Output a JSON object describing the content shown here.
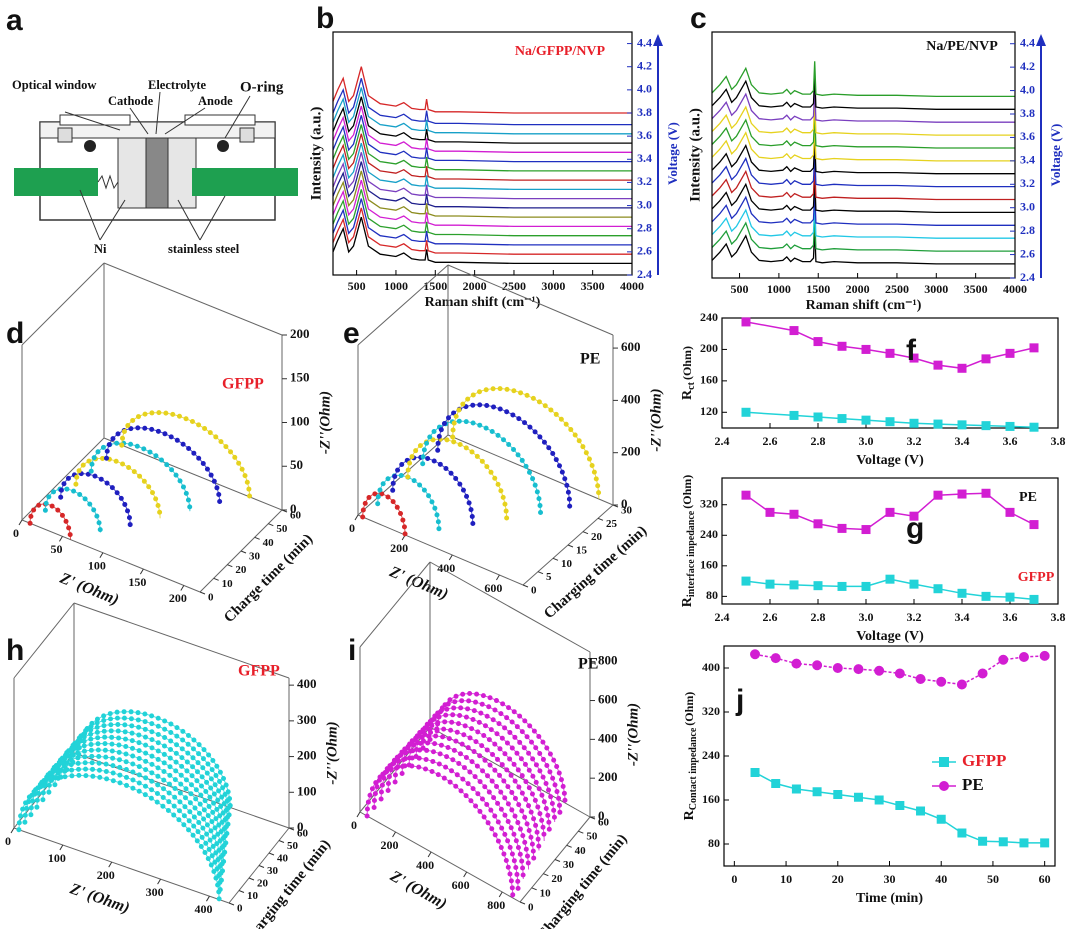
{
  "diagram": {
    "panel_label": "a",
    "labels": [
      "Optical window",
      "Cathode",
      "Electrolyte",
      "Anode",
      "O-ring",
      "Ni",
      "stainless steel"
    ]
  },
  "chart_data": [
    {
      "type": "spectra",
      "panel_label": "b",
      "title": "Na/GFPP/NVP",
      "title_color": "#e8202a",
      "xlabel": "Raman shift (cm⁻¹)",
      "ylabel": "Intensity (a.u.)",
      "y2label": "Voltage (V)",
      "xlim": [
        200,
        4000
      ],
      "xticks": [
        500,
        1000,
        1500,
        2000,
        2500,
        3000,
        3500,
        4000
      ],
      "y2lim": [
        2.4,
        4.5
      ],
      "y2ticks": [
        2.4,
        2.6,
        2.8,
        {
          "value": 3,
          "label": "3.0"
        },
        3.2,
        3.4,
        3.6,
        3.8,
        {
          "value": 4,
          "label": "4.0"
        },
        4.2,
        4.4
      ],
      "x": [
        200,
        260,
        330,
        400,
        460,
        560,
        650,
        800,
        1000,
        1100,
        1200,
        1300,
        1370,
        1390,
        1410,
        1500,
        1800,
        2500,
        3000,
        4000
      ],
      "profile": [
        0.1,
        0.2,
        0.3,
        0.1,
        0.15,
        0.4,
        0.15,
        0.08,
        0.06,
        0.09,
        0.04,
        0.03,
        0.03,
        0.12,
        0.03,
        0.01,
        0.01,
        0,
        0,
        0
      ],
      "curve_voltages": [
        2.5,
        2.58,
        2.66,
        2.74,
        2.82,
        2.9,
        2.98,
        3.06,
        3.14,
        3.22,
        3.3,
        3.38,
        3.46,
        3.54,
        3.62,
        3.7,
        3.8
      ],
      "curve_colors": [
        "#000000",
        "#d62728",
        "#1f2fbf",
        "#2ca02c",
        "#d21ed2",
        "#8c8c1e",
        "#1f1f8c",
        "#7a3fbf",
        "#17a0c8",
        "#c02020",
        "#2ca02c",
        "#1f2fbf",
        "#d21ed2",
        "#000000",
        "#17a0c8",
        "#1f2fbf",
        "#d62728"
      ]
    },
    {
      "type": "spectra",
      "panel_label": "c",
      "title": "Na/PE/NVP",
      "title_color": "#111111",
      "xlabel": "Raman shift (cm⁻¹)",
      "ylabel": "Intensity (a.u.)",
      "y2label": "Voltage (V)",
      "xlim": [
        150,
        4000
      ],
      "xticks": [
        500,
        1000,
        1500,
        2000,
        2500,
        3000,
        3500,
        4000
      ],
      "y2lim": [
        2.4,
        4.5
      ],
      "y2ticks": [
        2.4,
        2.6,
        2.8,
        {
          "value": 3,
          "label": "3.0"
        },
        3.2,
        3.4,
        3.6,
        3.8,
        {
          "value": 4,
          "label": "4.0"
        },
        4.2,
        4.4
      ],
      "x": [
        150,
        250,
        330,
        400,
        460,
        580,
        650,
        750,
        900,
        1050,
        1100,
        1150,
        1200,
        1300,
        1400,
        1440,
        1455,
        1470,
        1550,
        1700,
        2000,
        2500,
        3000,
        4000
      ],
      "profile": [
        0.03,
        0.1,
        0.17,
        0.06,
        0.1,
        0.24,
        0.1,
        0.03,
        0.02,
        0.03,
        0.06,
        0.02,
        0.05,
        0.02,
        0.02,
        0.05,
        0.3,
        0.02,
        0.01,
        0.02,
        0.01,
        0.01,
        0,
        0
      ],
      "curve_voltages": [
        2.52,
        2.63,
        2.74,
        2.85,
        2.96,
        3.07,
        3.18,
        3.29,
        3.4,
        3.51,
        3.62,
        3.73,
        3.84,
        3.95
      ],
      "curve_colors": [
        "#000000",
        "#1f9e3a",
        "#22c8e6",
        "#1f2fbf",
        "#000000",
        "#c02020",
        "#1f2fbf",
        "#000000",
        "#e6d21e",
        "#2a9e2a",
        "#e6d21e",
        "#7a3fbf",
        "#000000",
        "#2a9e2a"
      ]
    },
    {
      "type": "nyquist3d",
      "panel_label": "d",
      "label": "GFPP",
      "label_color": "#e8202a",
      "xlabel": "Z' (Ohm)",
      "tlabel": "Charge time (min)",
      "zlabel": "-Z''(Ohm)",
      "xlim": [
        0,
        220
      ],
      "xticks": [
        0,
        50,
        100,
        150,
        200
      ],
      "tlim": [
        0,
        60
      ],
      "tticks": [
        0,
        10,
        20,
        30,
        40,
        50,
        60
      ],
      "zlim": [
        0,
        200
      ],
      "zticks": [
        0,
        50,
        100,
        150,
        200
      ],
      "arc_times": [
        0,
        10,
        20,
        30,
        40,
        50,
        60
      ],
      "arc_starts": [
        10,
        12,
        14,
        16,
        18,
        20,
        22
      ],
      "arc_ends": [
        60,
        80,
        100,
        120,
        140,
        160,
        180
      ],
      "arc_heights": [
        30,
        35,
        40,
        45,
        50,
        55,
        60
      ],
      "arc_colors": [
        "#d62728",
        "#17becf",
        "#1f1fbf",
        "#e6d21e",
        "#17becf",
        "#1f1fbf",
        "#e6d21e"
      ]
    },
    {
      "type": "nyquist3d",
      "panel_label": "e",
      "label": "PE",
      "label_color": "#111111",
      "xlabel": "Z' (Ohm)",
      "tlabel": "Charging time (min)",
      "zlabel": "-Z''(Ohm)",
      "xlim": [
        0,
        700
      ],
      "xticks": [
        0,
        200,
        400,
        600
      ],
      "tlim": [
        0,
        30
      ],
      "tticks": [
        0,
        5,
        10,
        15,
        20,
        25,
        30
      ],
      "zlim": [
        0,
        650
      ],
      "zticks": [
        0,
        200,
        400,
        600
      ],
      "arc_times": [
        0,
        5,
        10,
        15,
        20,
        25,
        30
      ],
      "arc_starts": [
        20,
        20,
        20,
        20,
        20,
        20,
        20
      ],
      "arc_ends": [
        200,
        280,
        360,
        440,
        520,
        580,
        640
      ],
      "arc_heights": [
        120,
        150,
        180,
        210,
        240,
        260,
        280
      ],
      "arc_colors": [
        "#d62728",
        "#17becf",
        "#1f1fbf",
        "#e6d21e",
        "#17becf",
        "#1f1fbf",
        "#e6d21e"
      ]
    },
    {
      "type": "line",
      "panel_label": "f",
      "ylabel": "R",
      "ylabel_sub": "ct",
      "ylabel_unit": "(Ohm)",
      "xlabel": "Voltage (V)",
      "xlim": [
        2.4,
        3.8
      ],
      "xticks": [
        2.4,
        2.6,
        2.8,
        {
          "value": 3,
          "label": "3.0"
        },
        3.2,
        3.4,
        3.6,
        3.8
      ],
      "ylim": [
        100,
        240
      ],
      "yticks": [
        120,
        160,
        200,
        240
      ],
      "x": [
        2.5,
        2.7,
        2.8,
        2.9,
        3.0,
        3.1,
        3.2,
        3.3,
        3.4,
        3.5,
        3.6,
        3.7
      ],
      "series": [
        {
          "color": "#d21ed2",
          "marker": "square",
          "values": [
            235,
            224,
            210,
            204,
            200,
            195,
            189,
            180,
            176,
            188,
            195,
            202
          ]
        },
        {
          "color": "#22d3d8",
          "marker": "square",
          "values": [
            120,
            116,
            114,
            112,
            110,
            108,
            106,
            105,
            104,
            103,
            102,
            101
          ]
        }
      ]
    },
    {
      "type": "line",
      "panel_label": "g",
      "ylabel": "R",
      "ylabel_sub": "interface impedance",
      "ylabel_unit": "(Ohm)",
      "xlabel": "Voltage (V)",
      "xlim": [
        2.4,
        3.8
      ],
      "xticks": [
        2.4,
        2.6,
        2.8,
        {
          "value": 3,
          "label": "3.0"
        },
        3.2,
        3.4,
        3.6,
        3.8
      ],
      "ylim": [
        60,
        390
      ],
      "yticks": [
        80,
        160,
        240,
        320
      ],
      "x": [
        2.5,
        2.6,
        2.7,
        2.8,
        2.9,
        3.0,
        3.1,
        3.2,
        3.3,
        3.4,
        3.5,
        3.6,
        3.7
      ],
      "series": [
        {
          "color": "#d21ed2",
          "marker": "square",
          "values": [
            345,
            300,
            295,
            270,
            258,
            255,
            300,
            290,
            345,
            348,
            350,
            300,
            268
          ]
        },
        {
          "color": "#22d3d8",
          "marker": "square",
          "values": [
            120,
            112,
            110,
            108,
            106,
            106,
            125,
            112,
            100,
            88,
            80,
            78,
            72
          ]
        }
      ],
      "annotations": [
        {
          "text": "PE",
          "color": "#111111"
        },
        {
          "text": "GFPP",
          "color": "#e8202a"
        }
      ]
    },
    {
      "type": "nyquist3d",
      "panel_label": "h",
      "label": "GFPP",
      "label_color": "#e8202a",
      "xlabel": "Z' (Ohm)",
      "tlabel": "Charging time (min)",
      "zlabel": "-Z''(Ohm)",
      "xlim": [
        0,
        440
      ],
      "xticks": [
        0,
        100,
        200,
        300,
        400
      ],
      "tlim": [
        0,
        60
      ],
      "tticks": [
        0,
        10,
        20,
        30,
        40,
        50,
        60
      ],
      "zlim": [
        0,
        420
      ],
      "zticks": [
        0,
        100,
        200,
        300,
        400
      ],
      "arc_times": [
        0,
        6,
        12,
        18,
        24,
        30,
        36,
        42,
        48,
        54,
        60
      ],
      "arc_starts": [
        10,
        10,
        10,
        10,
        10,
        10,
        10,
        10,
        10,
        10,
        10
      ],
      "arc_ends": [
        420,
        410,
        400,
        390,
        380,
        370,
        360,
        350,
        340,
        330,
        320
      ],
      "arc_heights": [
        230,
        225,
        220,
        215,
        210,
        205,
        200,
        195,
        190,
        185,
        180
      ],
      "color": "#22d3d8"
    },
    {
      "type": "nyquist3d",
      "panel_label": "i",
      "label": "PE",
      "label_color": "#111111",
      "xlabel": "Z' (Ohm)",
      "tlabel": "Charging time (min)",
      "zlabel": "-Z''(Ohm)",
      "xlim": [
        0,
        900
      ],
      "xticks": [
        0,
        200,
        400,
        600,
        800
      ],
      "tlim": [
        0,
        60
      ],
      "tticks": [
        0,
        10,
        20,
        30,
        40,
        50,
        60
      ],
      "zlim": [
        0,
        850
      ],
      "zticks": [
        0,
        200,
        400,
        600,
        800
      ],
      "arc_times": [
        0,
        6,
        12,
        18,
        24,
        30,
        36,
        42,
        48,
        54,
        60
      ],
      "arc_starts": [
        40,
        40,
        40,
        40,
        40,
        40,
        40,
        40,
        40,
        40,
        40
      ],
      "arc_ends": [
        860,
        850,
        840,
        830,
        820,
        810,
        800,
        790,
        780,
        770,
        760
      ],
      "arc_heights": [
        420,
        415,
        410,
        400,
        390,
        380,
        370,
        360,
        350,
        340,
        330
      ],
      "color": "#d21ed2"
    },
    {
      "type": "line",
      "panel_label": "j",
      "ylabel": "R",
      "ylabel_sub": "Contact impedance",
      "ylabel_unit": "(Ohm)",
      "xlabel": "Time (min)",
      "xlim": [
        -2,
        62
      ],
      "xticks": [
        0,
        10,
        20,
        30,
        40,
        50,
        60
      ],
      "ylim": [
        40,
        440
      ],
      "yticks": [
        80,
        160,
        240,
        320,
        400
      ],
      "x": [
        4,
        8,
        12,
        16,
        20,
        24,
        28,
        32,
        36,
        40,
        44,
        48,
        52,
        56,
        60
      ],
      "series": [
        {
          "name": "GFPP",
          "label_color": "#e8202a",
          "color": "#22d3d8",
          "marker": "square",
          "values": [
            210,
            190,
            180,
            175,
            170,
            165,
            160,
            150,
            140,
            125,
            100,
            85,
            84,
            82,
            82
          ]
        },
        {
          "name": "PE",
          "label_color": "#111111",
          "color": "#d21ed2",
          "marker": "circle",
          "values": [
            425,
            418,
            408,
            405,
            400,
            398,
            395,
            390,
            380,
            375,
            370,
            390,
            415,
            420,
            422
          ]
        }
      ]
    }
  ]
}
